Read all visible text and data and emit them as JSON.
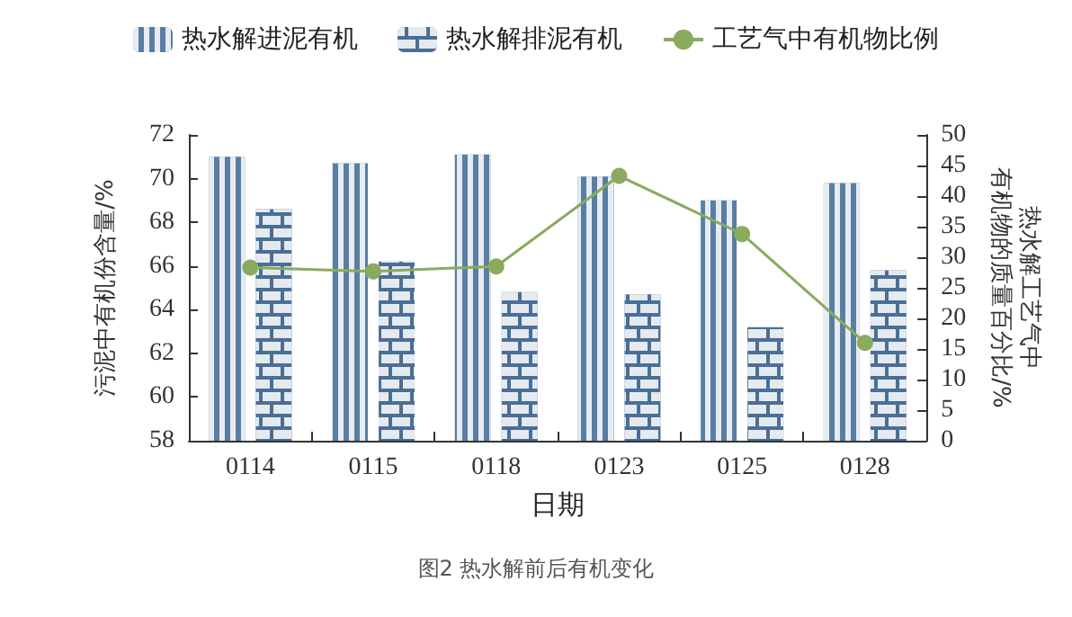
{
  "chart_data": {
    "type": "bar",
    "title": "图2 热水解前后有机变化",
    "xlabel": "日期",
    "ylabel": "污泥中有机份含量/%",
    "y2label": "热水解工艺气中有机物的质量百分比/%",
    "categories": [
      "0114",
      "0115",
      "0118",
      "0123",
      "0125",
      "0128"
    ],
    "series": [
      {
        "name": "热水解进泥有机",
        "color": "#5a7ea3",
        "values": [
          71.0,
          70.7,
          71.1,
          70.1,
          69.0,
          69.8
        ]
      },
      {
        "name": "热水解排泥有机",
        "color": "#4a6f96",
        "values": [
          68.6,
          66.2,
          64.8,
          64.7,
          63.2,
          65.8
        ]
      },
      {
        "name": "工艺气中有机物比例",
        "type": "line",
        "axis": "y2",
        "color": "#8aaa5e",
        "marker": "circle",
        "values": [
          28.3,
          27.7,
          28.5,
          43.3,
          33.8,
          16.0
        ]
      }
    ],
    "ylim": [
      58,
      72
    ],
    "yticks": [
      58,
      60,
      62,
      64,
      66,
      68,
      70,
      72
    ],
    "y2lim": [
      0,
      50
    ],
    "y2ticks": [
      0,
      5,
      10,
      15,
      20,
      25,
      30,
      35,
      40,
      45,
      50
    ],
    "legend": "top",
    "grid": false
  }
}
